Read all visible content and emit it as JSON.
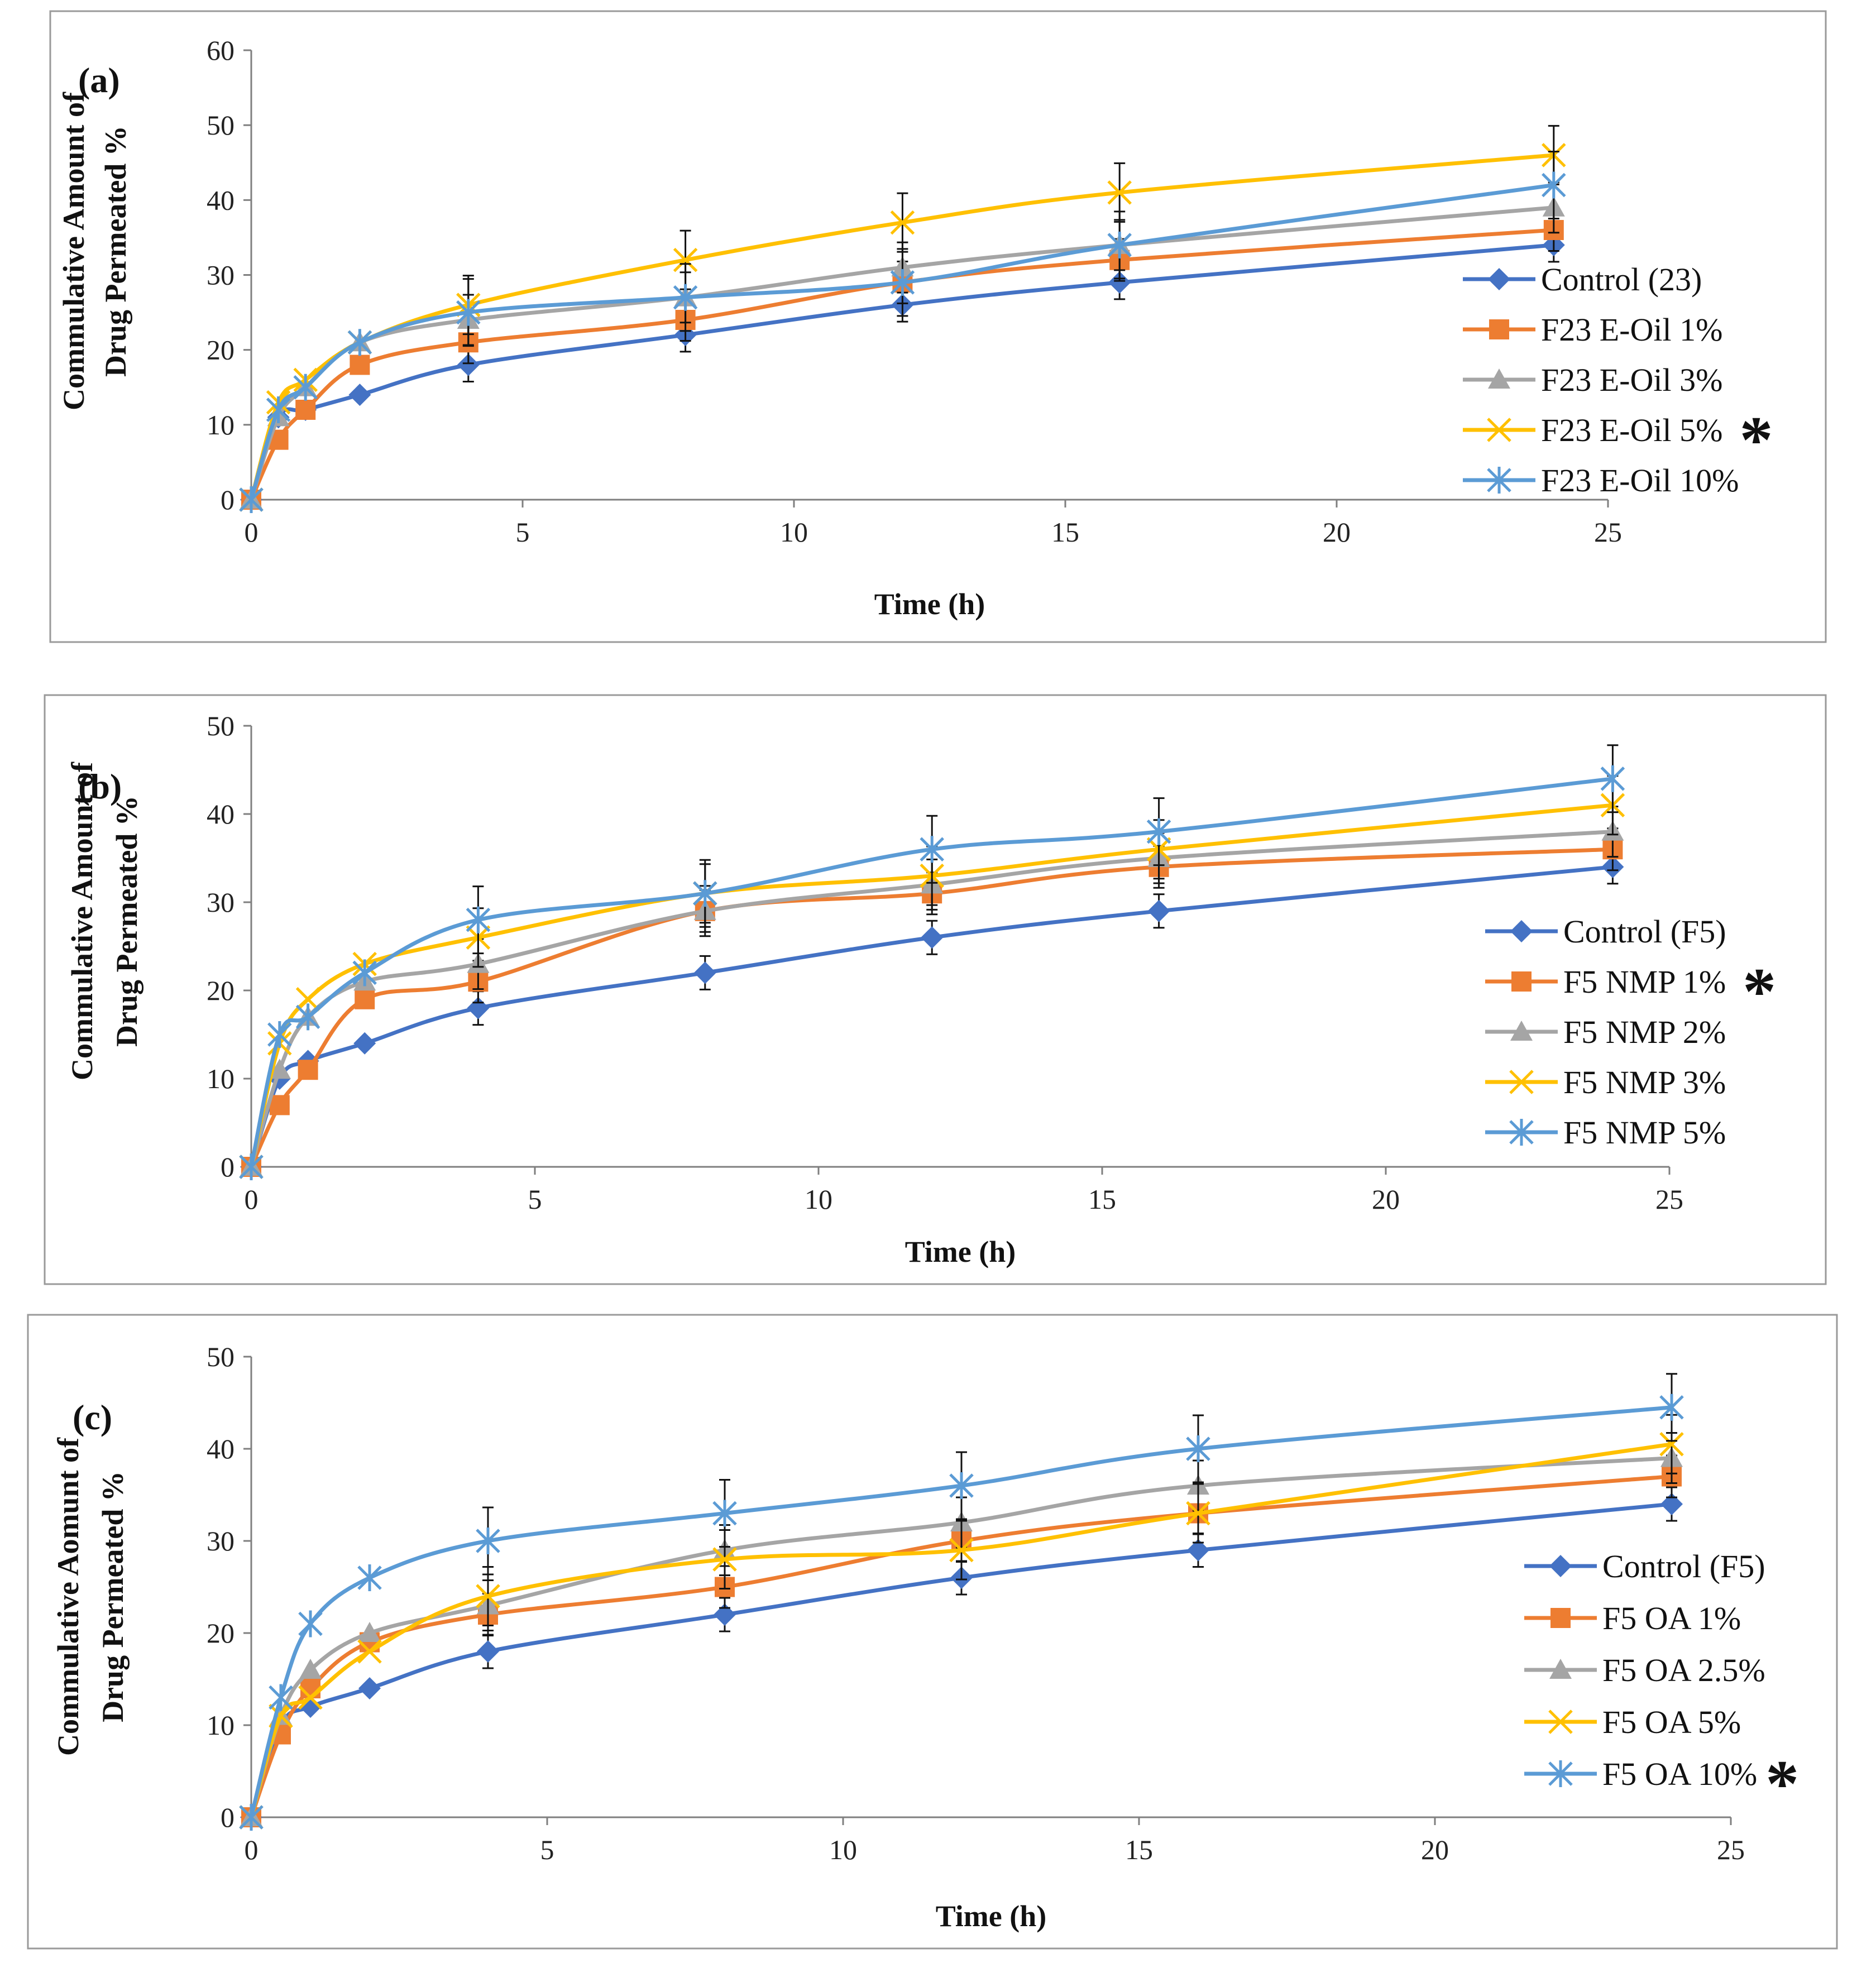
{
  "chart_data": [
    {
      "type": "line",
      "panel_label": "(a)",
      "xlabel": "Time (h)",
      "ylabel": [
        "Commulative Amount of",
        "Drug Permeated  %"
      ],
      "xlim": [
        0,
        25
      ],
      "ylim": [
        0,
        60
      ],
      "xticks": [
        0,
        5,
        10,
        15,
        20,
        25
      ],
      "yticks": [
        0,
        10,
        20,
        30,
        40,
        50,
        60
      ],
      "x": [
        0,
        0.5,
        1,
        2,
        4,
        8,
        12,
        16,
        24
      ],
      "legend_position": "right",
      "significant_marker": "*",
      "significant_series": 3,
      "series": [
        {
          "name": "Control (23)",
          "color": "#4472C4",
          "marker": "diamond",
          "values": [
            0,
            11,
            12,
            14,
            18,
            22,
            26,
            29,
            34
          ]
        },
        {
          "name": "F23 E-Oil 1%",
          "color": "#ED7D31",
          "marker": "square",
          "values": [
            0,
            8,
            12,
            18,
            21,
            24,
            29,
            32,
            36
          ]
        },
        {
          "name": "F23 E-Oil 3%",
          "color": "#A5A5A5",
          "marker": "triangle",
          "values": [
            0,
            11,
            15,
            21,
            24,
            27,
            31,
            34,
            39
          ]
        },
        {
          "name": "F23 E-Oil 5%",
          "color": "#FFC000",
          "marker": "x",
          "values": [
            0,
            13,
            16,
            21,
            26,
            32,
            37,
            41,
            46
          ]
        },
        {
          "name": "F23 E-Oil 10%",
          "color": "#5B9BD5",
          "marker": "star",
          "values": [
            0,
            12,
            15,
            21,
            25,
            27,
            29,
            34,
            42
          ]
        }
      ]
    },
    {
      "type": "line",
      "panel_label": "(b)",
      "xlabel": "Time (h)",
      "ylabel": [
        "Commulative Amount of",
        "Drug Permeated %"
      ],
      "xlim": [
        0,
        25
      ],
      "ylim": [
        0,
        50
      ],
      "xticks": [
        0,
        5,
        10,
        15,
        20,
        25
      ],
      "yticks": [
        0,
        10,
        20,
        30,
        40,
        50
      ],
      "x": [
        0,
        0.5,
        1,
        2,
        4,
        8,
        12,
        16,
        24
      ],
      "legend_position": "right",
      "significant_marker": "*",
      "significant_series": 1,
      "series": [
        {
          "name": "Control (F5)",
          "color": "#4472C4",
          "marker": "diamond",
          "values": [
            0,
            10,
            12,
            14,
            18,
            22,
            26,
            29,
            34
          ]
        },
        {
          "name": "F5 NMP  1%",
          "color": "#ED7D31",
          "marker": "square",
          "values": [
            0,
            7,
            11,
            19,
            21,
            29,
            31,
            34,
            36
          ]
        },
        {
          "name": "F5 NMP  2%",
          "color": "#A5A5A5",
          "marker": "triangle",
          "values": [
            0,
            11,
            17,
            21,
            23,
            29,
            32,
            35,
            38
          ]
        },
        {
          "name": "F5 NMP  3%",
          "color": "#FFC000",
          "marker": "x",
          "values": [
            0,
            14,
            19,
            23,
            26,
            31,
            33,
            36,
            41
          ]
        },
        {
          "name": "F5 NMP  5%",
          "color": "#5B9BD5",
          "marker": "star",
          "values": [
            0,
            15,
            17,
            22,
            28,
            31,
            36,
            38,
            44
          ]
        }
      ]
    },
    {
      "type": "line",
      "panel_label": "(c)",
      "xlabel": "Time (h)",
      "ylabel": [
        "Commulative Aomunt of",
        "Drug Permeated %"
      ],
      "xlim": [
        0,
        25
      ],
      "ylim": [
        0,
        50
      ],
      "xticks": [
        0,
        5,
        10,
        15,
        20,
        25
      ],
      "yticks": [
        0,
        10,
        20,
        30,
        40,
        50
      ],
      "x": [
        0,
        0.5,
        1,
        2,
        4,
        8,
        12,
        16,
        24
      ],
      "legend_position": "right",
      "significant_marker": "*",
      "significant_series": 4,
      "series": [
        {
          "name": "Control (F5)",
          "color": "#4472C4",
          "marker": "diamond",
          "values": [
            0,
            10,
            12,
            14,
            18,
            22,
            26,
            29,
            34
          ]
        },
        {
          "name": "F5  OA  1%",
          "color": "#ED7D31",
          "marker": "square",
          "values": [
            0,
            9,
            14,
            19,
            22,
            25,
            30,
            33,
            37
          ]
        },
        {
          "name": "F5  OA  2.5%",
          "color": "#A5A5A5",
          "marker": "triangle",
          "values": [
            0,
            11,
            16,
            20,
            23,
            29,
            32,
            36,
            39
          ]
        },
        {
          "name": "F5  OA  5%",
          "color": "#FFC000",
          "marker": "x",
          "values": [
            0,
            11,
            13,
            18,
            24,
            28,
            29,
            33,
            40.5
          ]
        },
        {
          "name": "F5  OA  10%",
          "color": "#5B9BD5",
          "marker": "star",
          "values": [
            0,
            13,
            21,
            26,
            30,
            33,
            36,
            40,
            44.5
          ]
        }
      ]
    }
  ]
}
